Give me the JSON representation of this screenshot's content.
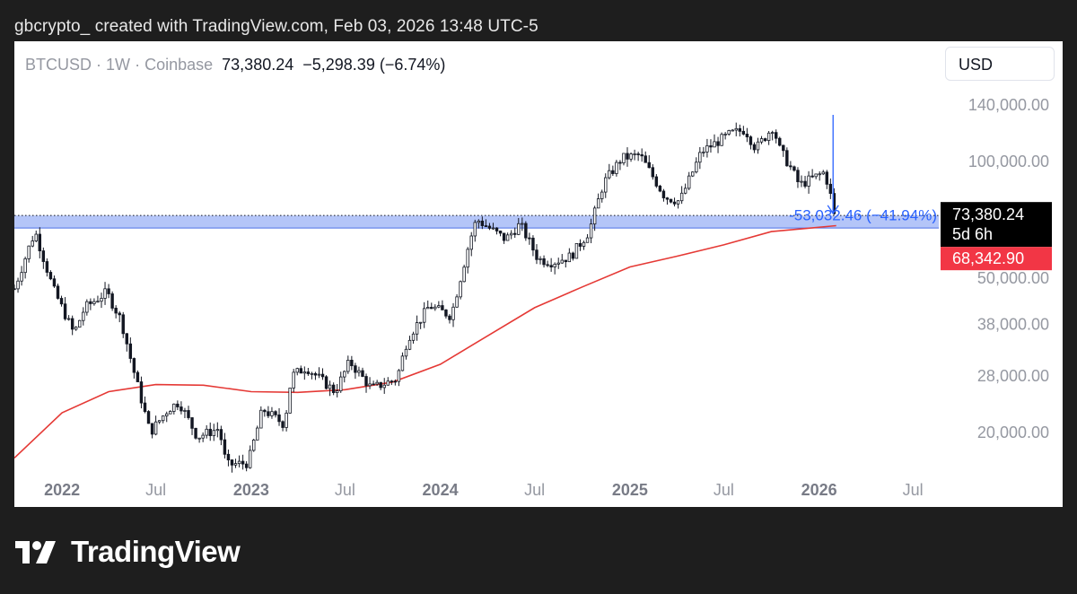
{
  "attribution": "gbcrypto_ created with TradingView.com, Feb 03, 2026 13:48 UTC-5",
  "symbol": {
    "name": "BTCUSD",
    "separator": "·",
    "interval": "1W",
    "exchange": "Coinbase",
    "last": "73,380.24",
    "change": "−5,298.39 (−6.74%)"
  },
  "currency_button": "USD",
  "brand": "TradingView",
  "colors": {
    "candle": "#131722",
    "ma_line": "#e53935",
    "zone_fill": "#a7bbf7",
    "zone_border": "#4c6fe6",
    "arrow": "#2962ff",
    "measure_text": "#2962ff",
    "last_price_bg": "#000000",
    "ma_label_bg": "#f23645"
  },
  "chart_data": {
    "type": "candlestick",
    "title": "BTCUSD · 1W · Coinbase",
    "scale": "log",
    "ylim": [
      16000,
      150000
    ],
    "y_ticks": [
      {
        "value": 140000,
        "label": "140,000.00"
      },
      {
        "value": 100000,
        "label": "100,000.00"
      },
      {
        "value": 50000,
        "label": "50,000.00"
      },
      {
        "value": 38000,
        "label": "38,000.00"
      },
      {
        "value": 28000,
        "label": "28,000.00"
      },
      {
        "value": 20000,
        "label": "20,000.00"
      }
    ],
    "x_range": [
      "2021-10-01",
      "2026-08-20"
    ],
    "x_ticks": [
      {
        "date": "2022-01-01",
        "label": "2022",
        "bold": true
      },
      {
        "date": "2022-07-01",
        "label": "Jul",
        "bold": false
      },
      {
        "date": "2023-01-01",
        "label": "2023",
        "bold": true
      },
      {
        "date": "2023-07-01",
        "label": "Jul",
        "bold": false
      },
      {
        "date": "2024-01-01",
        "label": "2024",
        "bold": true
      },
      {
        "date": "2024-07-01",
        "label": "Jul",
        "bold": false
      },
      {
        "date": "2025-01-01",
        "label": "2025",
        "bold": true
      },
      {
        "date": "2025-07-01",
        "label": "Jul",
        "bold": false
      },
      {
        "date": "2026-01-01",
        "label": "2026",
        "bold": true
      },
      {
        "date": "2026-07-01",
        "label": "Jul",
        "bold": false
      }
    ],
    "price_path": [
      [
        "2021-10-01",
        47000
      ],
      [
        "2021-10-29",
        60000
      ],
      [
        "2021-11-10",
        66000
      ],
      [
        "2021-12-15",
        47000
      ],
      [
        "2022-01-24",
        36000
      ],
      [
        "2022-02-14",
        42000
      ],
      [
        "2022-03-28",
        46000
      ],
      [
        "2022-04-25",
        39000
      ],
      [
        "2022-05-16",
        30000
      ],
      [
        "2022-06-20",
        20000
      ],
      [
        "2022-07-25",
        23000
      ],
      [
        "2022-08-15",
        24000
      ],
      [
        "2022-09-19",
        19500
      ],
      [
        "2022-10-31",
        20500
      ],
      [
        "2022-11-14",
        16500
      ],
      [
        "2022-12-26",
        16700
      ],
      [
        "2023-01-23",
        23000
      ],
      [
        "2023-03-06",
        21000
      ],
      [
        "2023-03-20",
        28000
      ],
      [
        "2023-04-17",
        29500
      ],
      [
        "2023-06-12",
        25500
      ],
      [
        "2023-07-10",
        30500
      ],
      [
        "2023-08-21",
        26000
      ],
      [
        "2023-10-09",
        27500
      ],
      [
        "2023-10-30",
        35000
      ],
      [
        "2023-12-11",
        42500
      ],
      [
        "2024-01-22",
        40000
      ],
      [
        "2024-02-26",
        62000
      ],
      [
        "2024-03-11",
        71000
      ],
      [
        "2024-05-06",
        63000
      ],
      [
        "2024-06-03",
        69000
      ],
      [
        "2024-07-08",
        56000
      ],
      [
        "2024-08-05",
        55000
      ],
      [
        "2024-09-09",
        57000
      ],
      [
        "2024-10-14",
        66000
      ],
      [
        "2024-11-11",
        88000
      ],
      [
        "2024-12-16",
        102000
      ],
      [
        "2025-01-20",
        104000
      ],
      [
        "2025-03-10",
        81000
      ],
      [
        "2025-04-07",
        79000
      ],
      [
        "2025-05-19",
        106000
      ],
      [
        "2025-07-14",
        118000
      ],
      [
        "2025-08-11",
        121000
      ],
      [
        "2025-09-01",
        108000
      ],
      [
        "2025-10-06",
        124000
      ],
      [
        "2025-10-13",
        110000
      ],
      [
        "2025-11-10",
        95000
      ],
      [
        "2025-11-24",
        87000
      ],
      [
        "2026-01-12",
        94000
      ],
      [
        "2026-01-26",
        78700
      ],
      [
        "2026-02-03",
        73380
      ]
    ],
    "series": [
      {
        "type": "line",
        "color": "#e53935",
        "points": [
          [
            "2021-10-01",
            17200
          ],
          [
            "2022-01-01",
            22500
          ],
          [
            "2022-04-01",
            25500
          ],
          [
            "2022-07-01",
            26600
          ],
          [
            "2022-10-01",
            26500
          ],
          [
            "2023-01-01",
            25500
          ],
          [
            "2023-04-01",
            25400
          ],
          [
            "2023-07-01",
            25800
          ],
          [
            "2023-10-01",
            27000
          ],
          [
            "2024-01-01",
            30000
          ],
          [
            "2024-04-01",
            35500
          ],
          [
            "2024-07-01",
            42000
          ],
          [
            "2024-10-01",
            47500
          ],
          [
            "2025-01-01",
            53500
          ],
          [
            "2025-04-01",
            57000
          ],
          [
            "2025-07-01",
            61000
          ],
          [
            "2025-10-01",
            66000
          ],
          [
            "2026-02-03",
            68342.9
          ]
        ]
      }
    ],
    "zone": {
      "low": 67400,
      "high": 72600,
      "from": "2021-10-01",
      "to": "2026-08-20"
    },
    "dotted_price_line": 72600,
    "arrow": {
      "date": "2026-01-28",
      "from": 132000,
      "to": 73500
    },
    "measure_label": "-53,032.46 (−41.94%)",
    "last_price": {
      "value": 73380.24,
      "label": "73,380.24",
      "countdown": "5d 6h"
    },
    "ma_label": {
      "value": 68342.9,
      "label": "68,342.90"
    }
  }
}
